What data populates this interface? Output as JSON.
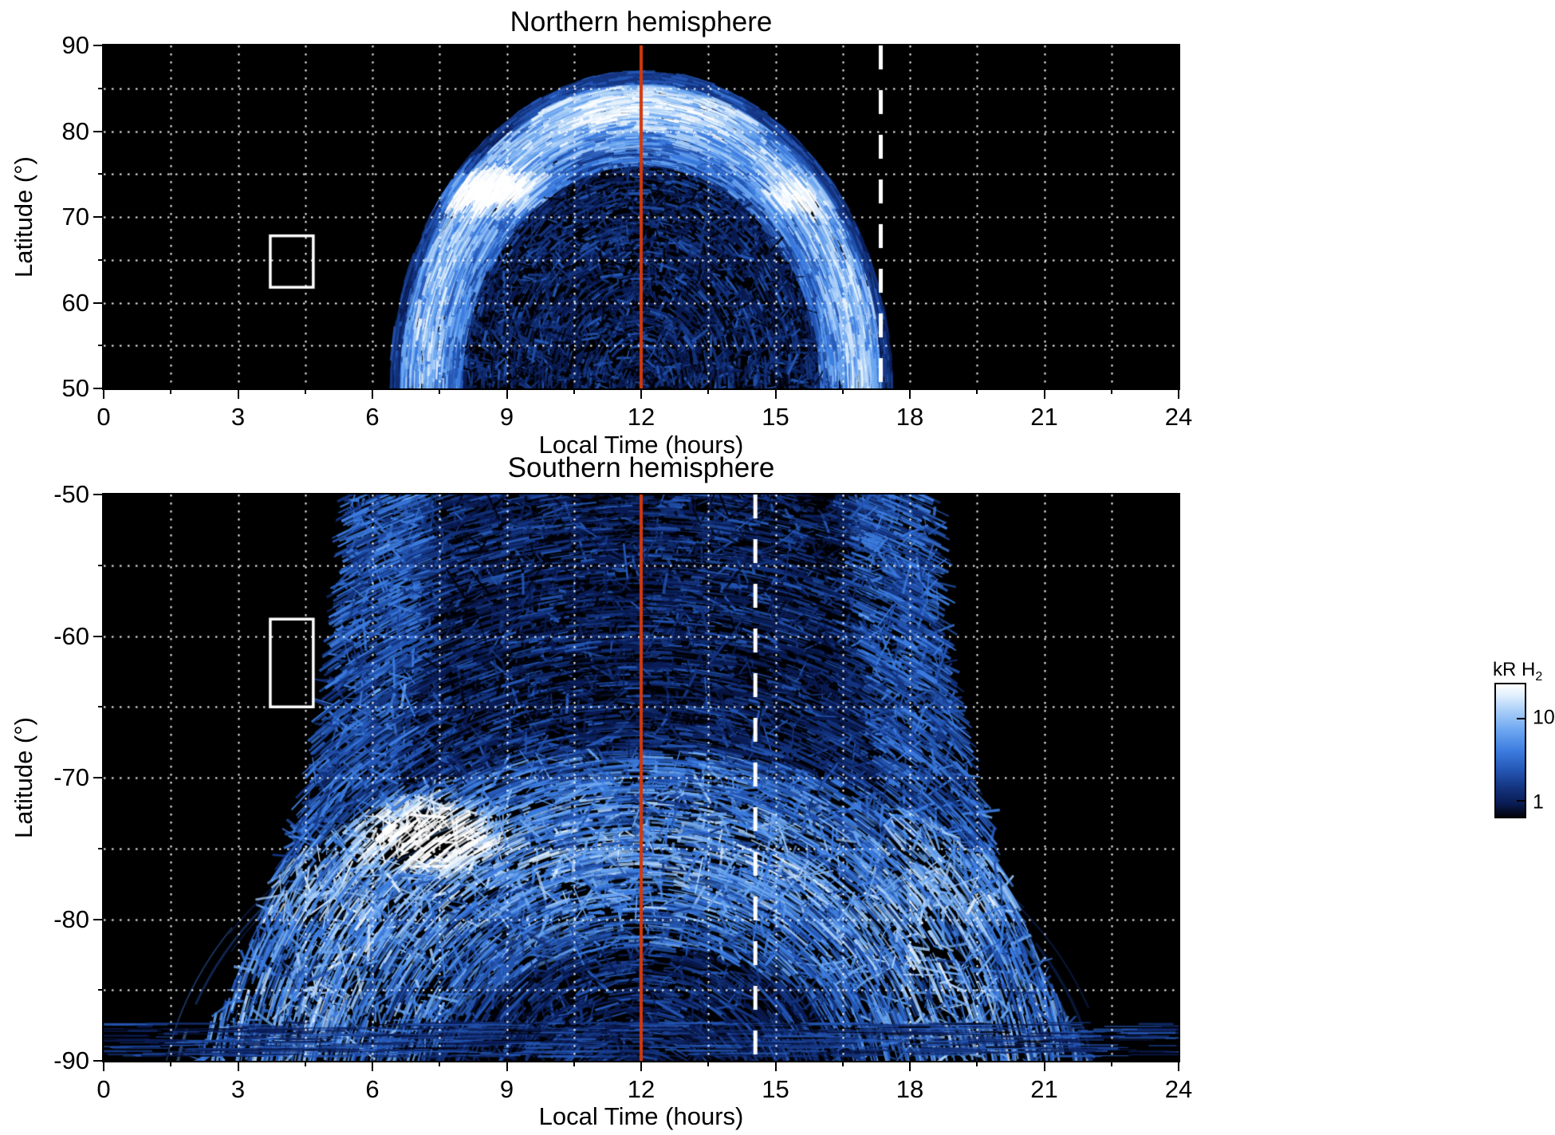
{
  "style": {
    "page_background": "#ffffff",
    "plot_background": "#000000",
    "grid_color": "#ffffff",
    "noon_line_color": "#d2390c",
    "dashed_line_color": "#ffffff",
    "box_color": "#ffffff",
    "axis_color": "#000000",
    "palette": [
      "#02030c",
      "#0a1c55",
      "#14347f",
      "#2456b4",
      "#3d7de0",
      "#6ba6f0",
      "#a9cef8",
      "#e2f0fd",
      "#ffffff"
    ]
  },
  "colorbar": {
    "label": "kR H",
    "label_sub": "2",
    "tick_top": "10",
    "tick_bottom": "1",
    "scale": "log"
  },
  "chart_data": [
    {
      "type": "heatmap",
      "title": "Northern hemisphere",
      "xlabel": "Local Time (hours)",
      "ylabel": "Latitude (°)",
      "xlim": [
        0,
        24
      ],
      "lat_top": 90,
      "lat_bottom": 50,
      "xticks": [
        0,
        3,
        6,
        9,
        12,
        15,
        18,
        21,
        24
      ],
      "yticks": [
        90,
        80,
        70,
        60,
        50
      ],
      "grid": {
        "style": "dotted",
        "x_step": 1.5,
        "y_step": 5
      },
      "colormap": {
        "label": "kR H2",
        "scale": "log",
        "tick_values": [
          10,
          1
        ]
      },
      "annotations": {
        "noon_line_x": 12,
        "dashed_line_x": 17.35,
        "selection_box": {
          "x": [
            3.72,
            4.68
          ],
          "lat": [
            61.8,
            67.8
          ]
        }
      },
      "emission": {
        "kind": "north",
        "description": "H2 auroral emission dome between ~06:30 and ~17:30 LT reaching ~87°; bright streaked oval 70-85°, brightest white patch near 8.5 h / 73° and secondary near 15.5 h / 72°; darker speckled polar interior below ~76° around noon",
        "x_center": 12,
        "lat_base": 50,
        "lat_apex": 87,
        "half_width_hours": 5.6,
        "inner_lat_apex": 76,
        "inner_half_width_hours": 4.0,
        "streaks": 15000,
        "arcs": 150,
        "peak_patch": {
          "x": 8.5,
          "lat": 73.2,
          "rx": 1.6,
          "ry": 3.2
        },
        "secondary_patch": {
          "x": 15.5,
          "lat": 72.5,
          "rx": 1.1,
          "ry": 2.6
        }
      }
    },
    {
      "type": "heatmap",
      "title": "Southern hemisphere",
      "xlabel": "Local Time (hours)",
      "ylabel": "Latitude (°)",
      "xlim": [
        0,
        24
      ],
      "lat_top": -50,
      "lat_bottom": -90,
      "xticks": [
        0,
        3,
        6,
        9,
        12,
        15,
        18,
        21,
        24
      ],
      "yticks": [
        -50,
        -60,
        -70,
        -80,
        -90
      ],
      "grid": {
        "style": "dotted",
        "x_step": 1.5,
        "y_step": 5
      },
      "colormap": {
        "label": "kR H2",
        "scale": "log",
        "tick_values": [
          10,
          1
        ]
      },
      "annotations": {
        "noon_line_x": 12,
        "dashed_line_x": 14.55,
        "selection_box": {
          "x": [
            3.72,
            4.68
          ],
          "lat": [
            -58.8,
            -65.0
          ]
        }
      },
      "emission": {
        "kind": "south",
        "description": "H2 auroral emission between ~05:00 and ~19:00 LT covering -50° to -90°; bright arc system near -68° to -82° with white peak near 7.3 h / -74°; thin emission band near -88° extending across all local times",
        "x_center": 12,
        "lat_top": -50,
        "lat_bottom": -90,
        "half_width_top_hours": 6.6,
        "half_width_bottom_hours": 10.0,
        "arc_center_lat": -94,
        "arc_hours_per_deg": 0.42,
        "arc_r_inner_deg": 12,
        "arc_r_outer_deg": 26,
        "streaks": 20000,
        "arcs": 170,
        "peak_patch": {
          "x": 7.3,
          "lat": -74,
          "rx": 1.9,
          "ry": 3.4
        },
        "polar_band": {
          "lat_from": -87.3,
          "lat_to": -89.7,
          "streaks": 600
        }
      }
    }
  ]
}
